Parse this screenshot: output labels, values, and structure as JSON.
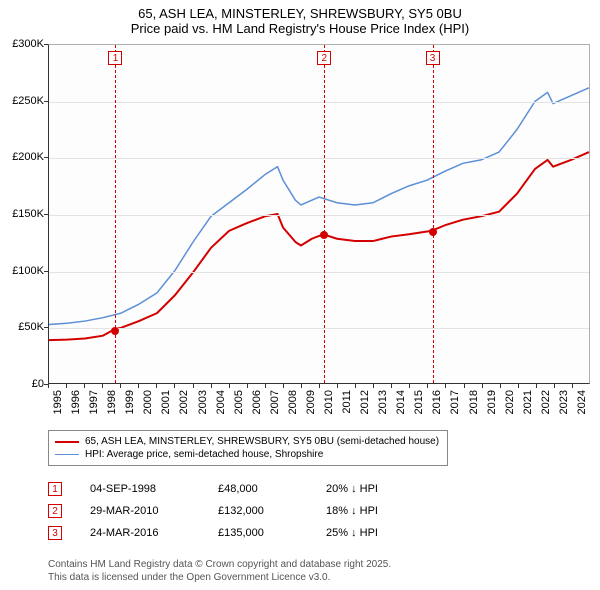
{
  "title": {
    "line1": "65, ASH LEA, MINSTERLEY, SHREWSBURY, SY5 0BU",
    "line2": "Price paid vs. HM Land Registry's House Price Index (HPI)"
  },
  "chart": {
    "type": "line",
    "background_color": "#fdfdfd",
    "grid_color": "#e4e4e4",
    "axis_color": "#333333",
    "x": {
      "min": 1995,
      "max": 2025,
      "ticks": [
        1995,
        1996,
        1997,
        1998,
        1999,
        2000,
        2001,
        2002,
        2003,
        2004,
        2005,
        2006,
        2007,
        2008,
        2009,
        2010,
        2011,
        2012,
        2013,
        2014,
        2015,
        2016,
        2017,
        2018,
        2019,
        2020,
        2021,
        2022,
        2023,
        2024
      ],
      "label_fontsize": 11
    },
    "y": {
      "min": 0,
      "max": 300000,
      "ticks": [
        0,
        50000,
        100000,
        150000,
        200000,
        250000,
        300000
      ],
      "tick_labels": [
        "£0",
        "£50K",
        "£100K",
        "£150K",
        "£200K",
        "£250K",
        "£300K"
      ],
      "label_fontsize": 11
    },
    "series": [
      {
        "name": "property",
        "label": "65, ASH LEA, MINSTERLEY, SHREWSBURY, SY5 0BU (semi-detached house)",
        "color": "#d40000",
        "line_width": 2,
        "data": [
          [
            1995,
            38000
          ],
          [
            1996,
            38500
          ],
          [
            1997,
            39500
          ],
          [
            1998,
            42000
          ],
          [
            1998.68,
            48000
          ],
          [
            1999,
            49000
          ],
          [
            2000,
            55000
          ],
          [
            2001,
            62000
          ],
          [
            2002,
            78000
          ],
          [
            2003,
            98000
          ],
          [
            2004,
            120000
          ],
          [
            2005,
            135000
          ],
          [
            2006,
            142000
          ],
          [
            2007,
            148000
          ],
          [
            2007.7,
            150000
          ],
          [
            2008,
            138000
          ],
          [
            2008.7,
            125000
          ],
          [
            2009,
            122000
          ],
          [
            2009.6,
            128000
          ],
          [
            2010.24,
            132000
          ],
          [
            2011,
            128000
          ],
          [
            2012,
            126000
          ],
          [
            2013,
            126000
          ],
          [
            2014,
            130000
          ],
          [
            2015,
            132000
          ],
          [
            2016.23,
            135000
          ],
          [
            2017,
            140000
          ],
          [
            2018,
            145000
          ],
          [
            2019,
            148000
          ],
          [
            2020,
            152000
          ],
          [
            2021,
            168000
          ],
          [
            2022,
            190000
          ],
          [
            2022.7,
            198000
          ],
          [
            2023,
            192000
          ],
          [
            2024,
            198000
          ],
          [
            2025,
            205000
          ]
        ]
      },
      {
        "name": "hpi",
        "label": "HPI: Average price, semi-detached house, Shropshire",
        "color": "#5b8fd6",
        "line_width": 1.5,
        "data": [
          [
            1995,
            52000
          ],
          [
            1996,
            53000
          ],
          [
            1997,
            55000
          ],
          [
            1998,
            58000
          ],
          [
            1999,
            62000
          ],
          [
            2000,
            70000
          ],
          [
            2001,
            80000
          ],
          [
            2002,
            100000
          ],
          [
            2003,
            125000
          ],
          [
            2004,
            148000
          ],
          [
            2005,
            160000
          ],
          [
            2006,
            172000
          ],
          [
            2007,
            185000
          ],
          [
            2007.7,
            192000
          ],
          [
            2008,
            180000
          ],
          [
            2008.7,
            162000
          ],
          [
            2009,
            158000
          ],
          [
            2010,
            165000
          ],
          [
            2011,
            160000
          ],
          [
            2012,
            158000
          ],
          [
            2013,
            160000
          ],
          [
            2014,
            168000
          ],
          [
            2015,
            175000
          ],
          [
            2016,
            180000
          ],
          [
            2017,
            188000
          ],
          [
            2018,
            195000
          ],
          [
            2019,
            198000
          ],
          [
            2020,
            205000
          ],
          [
            2021,
            225000
          ],
          [
            2022,
            250000
          ],
          [
            2022.7,
            258000
          ],
          [
            2023,
            248000
          ],
          [
            2024,
            255000
          ],
          [
            2025,
            262000
          ]
        ]
      }
    ],
    "markers": [
      {
        "n": "1",
        "x": 1998.68,
        "y": 48000,
        "color": "#d40000"
      },
      {
        "n": "2",
        "x": 2010.24,
        "y": 132000,
        "color": "#d40000"
      },
      {
        "n": "3",
        "x": 2016.23,
        "y": 135000,
        "color": "#d40000"
      }
    ]
  },
  "legend": {
    "rows": [
      {
        "color": "#d40000",
        "width": 2,
        "label_path": "chart.series.0.label"
      },
      {
        "color": "#5b8fd6",
        "width": 1.5,
        "label_path": "chart.series.1.label"
      }
    ]
  },
  "events": [
    {
      "n": "1",
      "color": "#d40000",
      "date": "04-SEP-1998",
      "price": "£48,000",
      "diff": "20% ↓ HPI"
    },
    {
      "n": "2",
      "color": "#d40000",
      "date": "29-MAR-2010",
      "price": "£132,000",
      "diff": "18% ↓ HPI"
    },
    {
      "n": "3",
      "color": "#d40000",
      "date": "24-MAR-2016",
      "price": "£135,000",
      "diff": "25% ↓ HPI"
    }
  ],
  "footer": {
    "line1": "Contains HM Land Registry data © Crown copyright and database right 2025.",
    "line2": "This data is licensed under the Open Government Licence v3.0."
  }
}
